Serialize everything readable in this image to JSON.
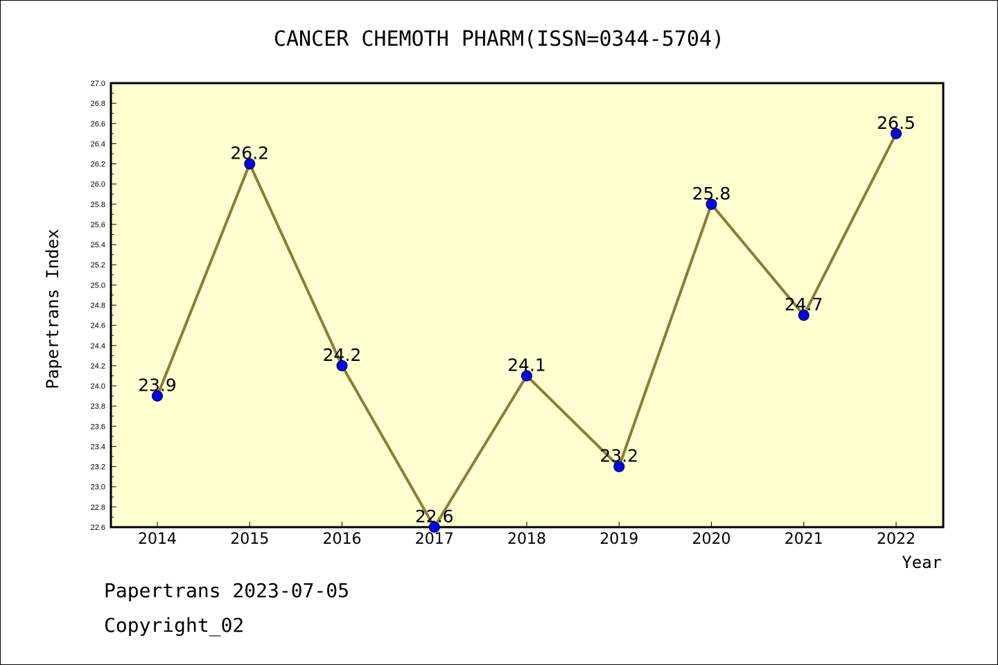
{
  "chart_data": {
    "type": "line",
    "title": "CANCER CHEMOTH PHARM(ISSN=0344-5704)",
    "xlabel": "Year",
    "ylabel": "Papertrans Index",
    "categories": [
      "2014",
      "2015",
      "2016",
      "2017",
      "2018",
      "2019",
      "2020",
      "2021",
      "2022"
    ],
    "values": [
      23.9,
      26.2,
      24.2,
      22.6,
      24.1,
      23.2,
      25.8,
      24.7,
      26.5
    ],
    "data_labels": [
      "23.9",
      "26.2",
      "24.2",
      "22.6",
      "24.1",
      "23.2",
      "25.8",
      "24.7",
      "26.5"
    ],
    "ylim": [
      22.6,
      27.0
    ],
    "yticks": [
      "22.6",
      "22.8",
      "23.0",
      "23.2",
      "23.4",
      "23.6",
      "23.8",
      "24.0",
      "24.2",
      "24.4",
      "24.6",
      "24.8",
      "25.0",
      "25.2",
      "25.4",
      "25.6",
      "25.8",
      "26.0",
      "26.2",
      "26.4",
      "26.6",
      "26.8",
      "27.0"
    ],
    "grid": false,
    "colors": {
      "plot_background": "#ffffd0",
      "line": "#8b7d3a",
      "marker": "#0000ff"
    }
  },
  "footer": {
    "date_line": "Papertrans 2023-07-05",
    "copyright": "Copyright_02"
  }
}
